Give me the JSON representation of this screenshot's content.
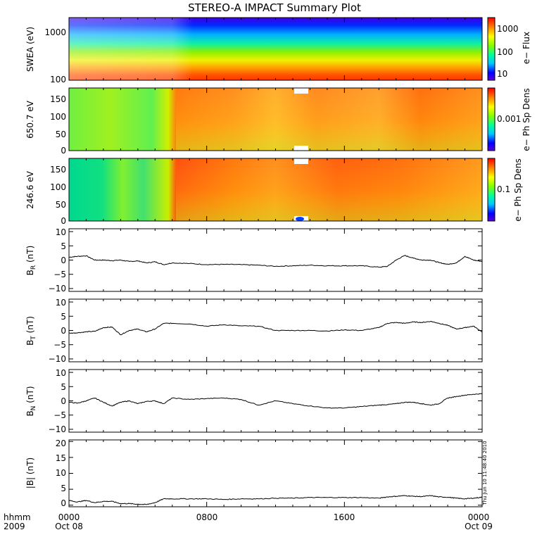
{
  "title": "STEREO-A IMPACT Summary Plot",
  "timestamp": "Thu Jun 10 11:48:40 2010",
  "time_axis": {
    "row1_label": "hhmm",
    "row2_label": "2009",
    "ticks": [
      {
        "top": "0000",
        "bottom": "Oct 08"
      },
      {
        "top": "0800",
        "bottom": ""
      },
      {
        "top": "1600",
        "bottom": ""
      },
      {
        "top": "0000",
        "bottom": "Oct 09"
      }
    ]
  },
  "chart_data": [
    {
      "type": "heatmap",
      "ylabel": "SWEA (eV)",
      "yscale": "log",
      "y_ticks": [
        "1000",
        "100"
      ],
      "colorbar_label": "e− Flux",
      "colorbar_scale": "log",
      "colorbar_ticks": [
        "1000",
        "100",
        "10"
      ]
    },
    {
      "type": "heatmap",
      "ylabel": "650.7 eV",
      "ylim": [
        0,
        180
      ],
      "y_ticks": [
        "150",
        "100",
        "50",
        "0"
      ],
      "colorbar_label": "e− Ph Sp Dens",
      "colorbar_scale": "log",
      "colorbar_ticks": [
        "0.001"
      ]
    },
    {
      "type": "heatmap",
      "ylabel": "246.6 eV",
      "ylim": [
        0,
        180
      ],
      "y_ticks": [
        "150",
        "100",
        "50",
        "0"
      ],
      "colorbar_label": "e− Ph Sp Dens",
      "colorbar_scale": "log",
      "colorbar_ticks": [
        "0.1"
      ]
    },
    {
      "type": "line",
      "ylabel_main": "B",
      "ylabel_sub": "R",
      "ylabel_unit": " (nT)",
      "ylim": [
        -11,
        11
      ],
      "y_ticks": [
        "10",
        "5",
        "0",
        "−5",
        "−10"
      ],
      "x_hours": [
        0,
        0.5,
        1,
        1.5,
        2,
        2.5,
        3,
        3.5,
        4,
        4.5,
        5,
        5.5,
        6,
        7,
        8,
        9,
        10,
        11,
        12,
        13,
        14,
        15,
        16,
        17,
        18,
        18.5,
        19,
        19.5,
        20,
        20.5,
        21,
        21.5,
        22,
        22.5,
        23,
        23.5,
        24
      ],
      "values": [
        1,
        1.3,
        1.5,
        0,
        0,
        -0.2,
        0,
        -0.5,
        -0.3,
        -1,
        -0.6,
        -1.6,
        -1,
        -1.2,
        -1.6,
        -1.5,
        -1.6,
        -1.8,
        -2.2,
        -2,
        -1.8,
        -2,
        -2,
        -2,
        -2.5,
        -2.2,
        0,
        1.6,
        0.7,
        0,
        0,
        -0.9,
        -1.5,
        -1,
        1.3,
        0,
        -0.5
      ]
    },
    {
      "type": "line",
      "ylabel_main": "B",
      "ylabel_sub": "T",
      "ylabel_unit": " (nT)",
      "ylim": [
        -11,
        11
      ],
      "y_ticks": [
        "10",
        "5",
        "0",
        "−5",
        "−10"
      ],
      "x_hours": [
        0,
        0.5,
        1,
        1.5,
        2,
        2.5,
        3,
        3.5,
        4,
        4.5,
        5,
        5.5,
        6,
        7,
        8,
        9,
        10,
        11,
        12,
        13,
        14,
        15,
        16,
        17,
        18,
        18.5,
        19,
        19.5,
        20,
        20.5,
        21,
        21.5,
        22,
        22.5,
        23,
        23.5,
        24
      ],
      "values": [
        -1,
        -0.8,
        -0.5,
        -0.3,
        1,
        1.2,
        -1.5,
        0,
        0.5,
        -0.5,
        0.5,
        2.5,
        2.5,
        2.3,
        1.5,
        2,
        1.6,
        1.5,
        0,
        0,
        0,
        -0.2,
        0.2,
        0,
        1,
        2.5,
        2.8,
        2.5,
        3,
        2.8,
        3.2,
        2.5,
        1.8,
        0.5,
        1,
        1.5,
        -0.5
      ]
    },
    {
      "type": "line",
      "ylabel_main": "B",
      "ylabel_sub": "N",
      "ylabel_unit": " (nT)",
      "ylim": [
        -11,
        11
      ],
      "y_ticks": [
        "10",
        "5",
        "0",
        "−5",
        "−10"
      ],
      "x_hours": [
        0,
        0.5,
        1,
        1.5,
        2,
        2.5,
        3,
        3.5,
        4,
        4.5,
        5,
        5.5,
        6,
        7,
        8,
        9,
        10,
        11,
        12,
        13,
        14,
        15,
        16,
        17,
        18,
        18.5,
        19,
        19.5,
        20,
        20.5,
        21,
        21.5,
        22,
        22.5,
        23,
        23.5,
        24
      ],
      "values": [
        -0.5,
        -0.8,
        0,
        1,
        -0.5,
        -1.8,
        -0.5,
        0,
        -1,
        -0.2,
        0,
        -1,
        1,
        0.5,
        0.8,
        1,
        0.5,
        -1.5,
        0,
        -1,
        -1.8,
        -2.5,
        -2.5,
        -2,
        -1.5,
        -1.3,
        -1,
        -0.5,
        -0.5,
        -1,
        -1.5,
        -1,
        1,
        1.5,
        2,
        2.3,
        2.5
      ]
    },
    {
      "type": "line",
      "ylabel_main": "|B|",
      "ylabel_sub": "",
      "ylabel_unit": " (nT)",
      "ylim": [
        -0.5,
        20.5
      ],
      "y_ticks": [
        "20",
        "15",
        "10",
        "5",
        "0"
      ],
      "x_hours": [
        0,
        0.5,
        1,
        1.5,
        2,
        2.5,
        3,
        3.5,
        4,
        4.5,
        5,
        5.5,
        6,
        7,
        8,
        9,
        10,
        11,
        12,
        13,
        14,
        15,
        16,
        17,
        18,
        18.5,
        19,
        19.5,
        20,
        20.5,
        21,
        21.5,
        22,
        22.5,
        23,
        23.5,
        24
      ],
      "values": [
        1.5,
        1,
        1.5,
        0.8,
        1.2,
        1.2,
        0.5,
        0.5,
        0.3,
        0.2,
        0.8,
        2,
        2,
        2,
        2,
        1.8,
        2,
        2,
        2.2,
        2.2,
        2.4,
        2.4,
        2.4,
        2.4,
        2.2,
        2.6,
        2.8,
        3,
        2.8,
        2.7,
        3,
        2.6,
        2.5,
        2.2,
        2,
        2.2,
        2.5
      ]
    }
  ]
}
